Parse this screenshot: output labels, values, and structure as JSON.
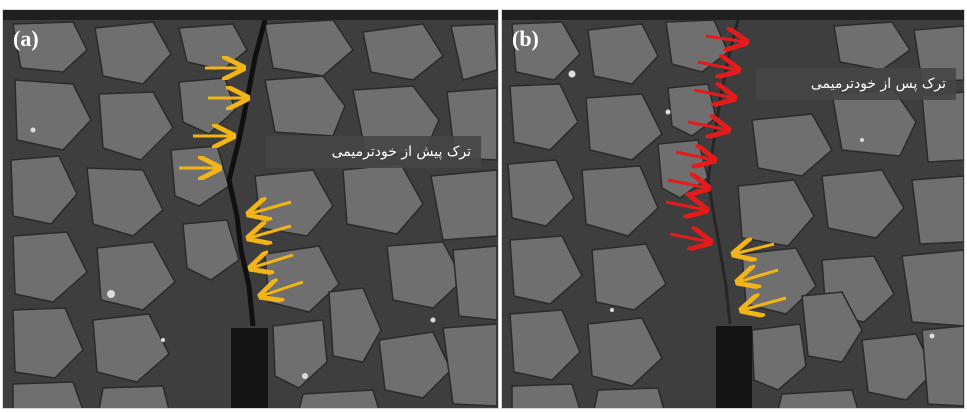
{
  "panels": [
    {
      "label": "(a)",
      "caption": "ترک پیش از خودترمیمی"
    },
    {
      "label": "(b)",
      "caption": "ترک پس از خودترمیمی"
    }
  ],
  "colors": {
    "arrow_orange": "#f2b417",
    "arrow_red": "#e51b1b",
    "matrix": "#3e3e3e",
    "particle": "#6f6f6f",
    "void": "#141414"
  },
  "icons": [
    "arrow-right-icon",
    "arrow-left-icon"
  ]
}
